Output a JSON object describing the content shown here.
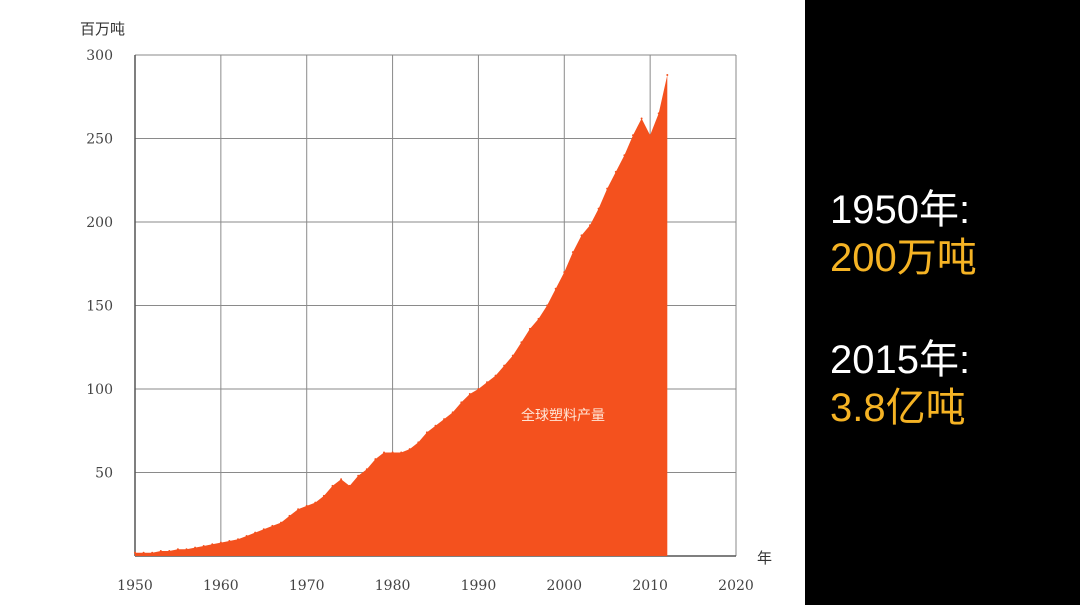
{
  "chart_data": {
    "type": "area",
    "ylabel": "百万吨",
    "xlabel": "年",
    "series_label": "全球塑料产量",
    "xlim": [
      1950,
      2020
    ],
    "ylim": [
      0,
      300
    ],
    "x_ticks": [
      "1950",
      "1960",
      "1970",
      "1980",
      "1990",
      "2000",
      "2010",
      "2020"
    ],
    "y_ticks": [
      "50",
      "100",
      "150",
      "200",
      "250",
      "300"
    ],
    "x_tick_values": [
      1950,
      1960,
      1970,
      1980,
      1990,
      2000,
      2010,
      2020
    ],
    "y_tick_values": [
      50,
      100,
      150,
      200,
      250,
      300
    ],
    "grid": true,
    "fill_color": "#f4511e",
    "x": [
      1950,
      1951,
      1952,
      1953,
      1954,
      1955,
      1956,
      1957,
      1958,
      1959,
      1960,
      1961,
      1962,
      1963,
      1964,
      1965,
      1966,
      1967,
      1968,
      1969,
      1970,
      1971,
      1972,
      1973,
      1974,
      1975,
      1976,
      1977,
      1978,
      1979,
      1980,
      1981,
      1982,
      1983,
      1984,
      1985,
      1986,
      1987,
      1988,
      1989,
      1990,
      1991,
      1992,
      1993,
      1994,
      1995,
      1996,
      1997,
      1998,
      1999,
      2000,
      2001,
      2002,
      2003,
      2004,
      2005,
      2006,
      2007,
      2008,
      2009,
      2010,
      2011,
      2012
    ],
    "values": [
      2,
      2,
      2,
      3,
      3,
      4,
      4,
      5,
      6,
      7,
      8,
      9,
      10,
      12,
      14,
      16,
      18,
      20,
      24,
      28,
      30,
      32,
      36,
      42,
      46,
      42,
      48,
      52,
      58,
      62,
      62,
      62,
      64,
      68,
      74,
      78,
      82,
      86,
      92,
      97,
      100,
      104,
      108,
      114,
      120,
      128,
      136,
      142,
      150,
      160,
      170,
      182,
      192,
      198,
      208,
      220,
      230,
      240,
      252,
      262,
      252,
      265,
      288
    ]
  },
  "side_panel": {
    "stat_1950_year": "1950年:",
    "stat_1950_value": "200万吨",
    "stat_2015_year": "2015年:",
    "stat_2015_value": "3.8亿吨",
    "year_color": "#ffffff",
    "value_color": "#f5b324",
    "background": "#000000"
  }
}
